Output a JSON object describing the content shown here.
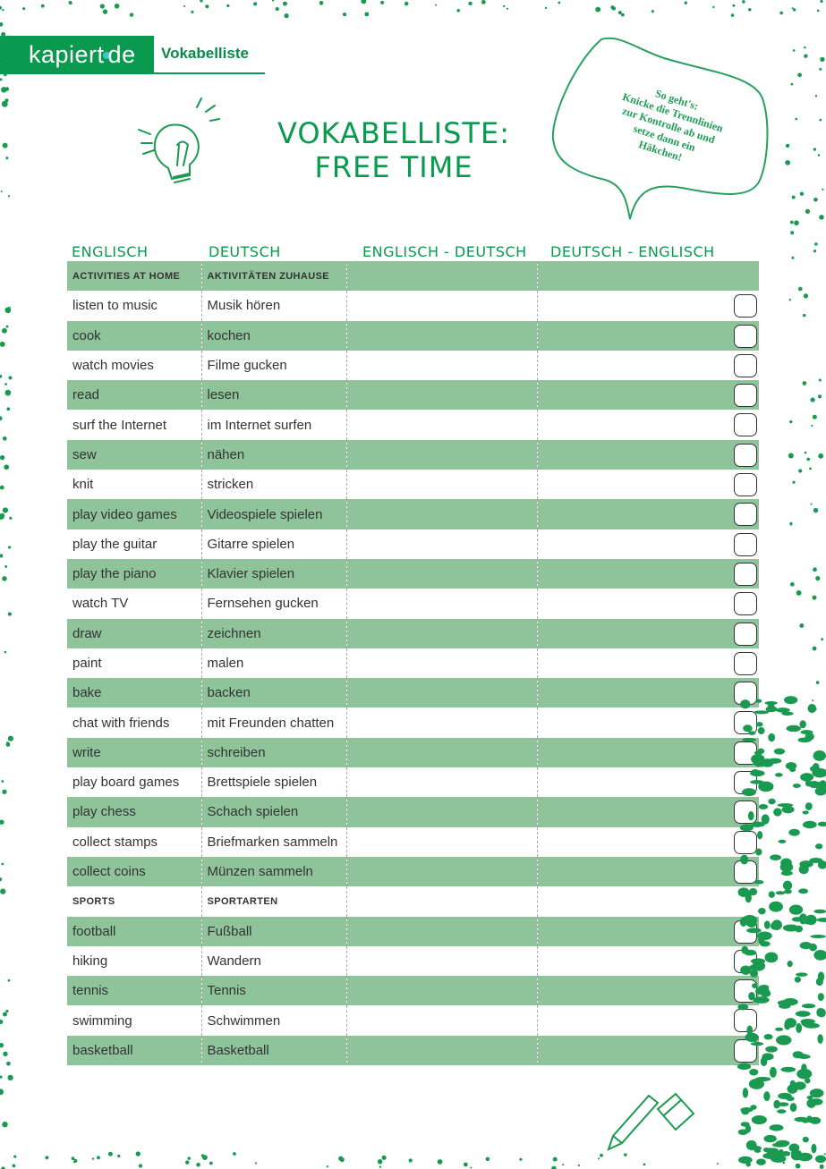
{
  "header": {
    "logo": "kapiert.de",
    "subtitle": "Vokabelliste"
  },
  "title": {
    "line1": "VOKABELLISTE:",
    "line2": "FREE TIME"
  },
  "hint": {
    "lines": [
      "So geht's:",
      "Knicke die Trennlinien",
      "zur Kontrolle ab und",
      "setze dann ein",
      "Häkchen!"
    ]
  },
  "columns": [
    "ENGLISCH",
    "DEUTSCH",
    "ENGLISCH - DEUTSCH",
    "DEUTSCH - ENGLISCH"
  ],
  "colors": {
    "brand": "#0a9a4f",
    "row_band": "#8fc39a"
  },
  "rows": [
    {
      "en": "ACTIVITIES AT HOME",
      "de": "AKTIVITÄTEN ZUHAUSE",
      "section": true
    },
    {
      "en": "listen to music",
      "de": "Musik hören"
    },
    {
      "en": "cook",
      "de": "kochen"
    },
    {
      "en": "watch movies",
      "de": "Filme gucken"
    },
    {
      "en": "read",
      "de": "lesen"
    },
    {
      "en": "surf the Internet",
      "de": "im Internet surfen"
    },
    {
      "en": "sew",
      "de": "nähen"
    },
    {
      "en": "knit",
      "de": "stricken"
    },
    {
      "en": "play video games",
      "de": "Videospiele spielen"
    },
    {
      "en": "play the guitar",
      "de": "Gitarre spielen"
    },
    {
      "en": "play the piano",
      "de": "Klavier spielen"
    },
    {
      "en": "watch TV",
      "de": "Fernsehen gucken"
    },
    {
      "en": "draw",
      "de": "zeichnen"
    },
    {
      "en": "paint",
      "de": "malen"
    },
    {
      "en": "bake",
      "de": "backen"
    },
    {
      "en": "chat with friends",
      "de": "mit Freunden chatten"
    },
    {
      "en": "write",
      "de": "schreiben"
    },
    {
      "en": "play board games",
      "de": "Brettspiele spielen"
    },
    {
      "en": "play chess",
      "de": "Schach spielen"
    },
    {
      "en": "collect stamps",
      "de": "Briefmarken sammeln"
    },
    {
      "en": "collect coins",
      "de": "Münzen sammeln"
    },
    {
      "en": "SPORTS",
      "de": "SPORTARTEN",
      "section": true
    },
    {
      "en": "football",
      "de": "Fußball"
    },
    {
      "en": "hiking",
      "de": "Wandern"
    },
    {
      "en": "tennis",
      "de": "Tennis"
    },
    {
      "en": "swimming",
      "de": "Schwimmen"
    },
    {
      "en": "basketball",
      "de": "Basketball"
    }
  ]
}
